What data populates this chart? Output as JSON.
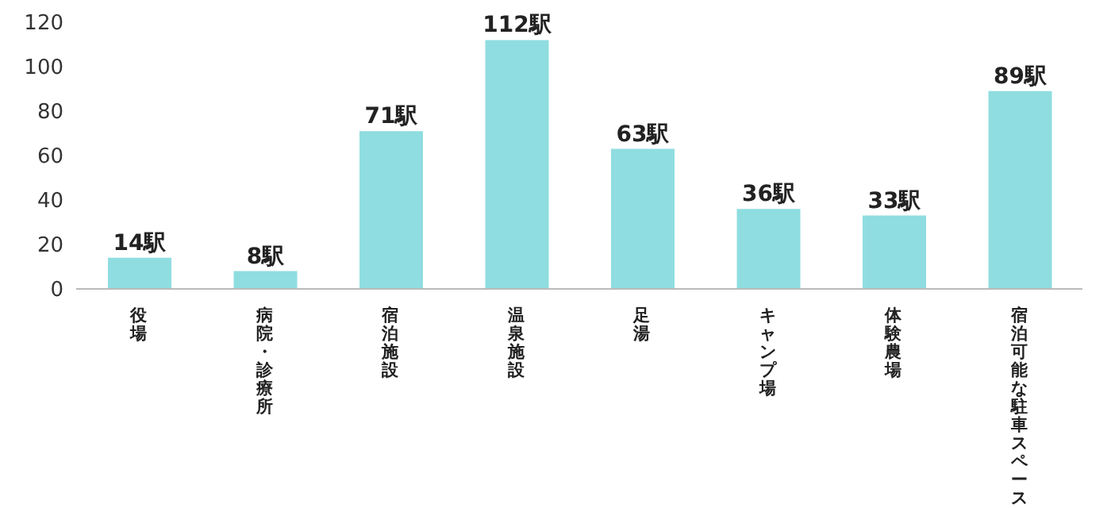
{
  "chart_data": {
    "type": "bar",
    "categories": [
      "役場",
      "病院・診療所",
      "宿泊施設",
      "温泉施設",
      "足湯",
      "キャンプ場",
      "体験農場",
      "宿泊可能な駐車スペース"
    ],
    "values": [
      14,
      8,
      71,
      112,
      63,
      36,
      33,
      89
    ],
    "value_labels": [
      "14駅",
      "8駅",
      "71駅",
      "112駅",
      "63駅",
      "36駅",
      "33駅",
      "89駅"
    ],
    "color": "#8fdde0",
    "ylim": [
      0,
      120
    ],
    "yticks": [
      0,
      20,
      40,
      60,
      80,
      100,
      120
    ],
    "grid": false,
    "legend": false
  }
}
